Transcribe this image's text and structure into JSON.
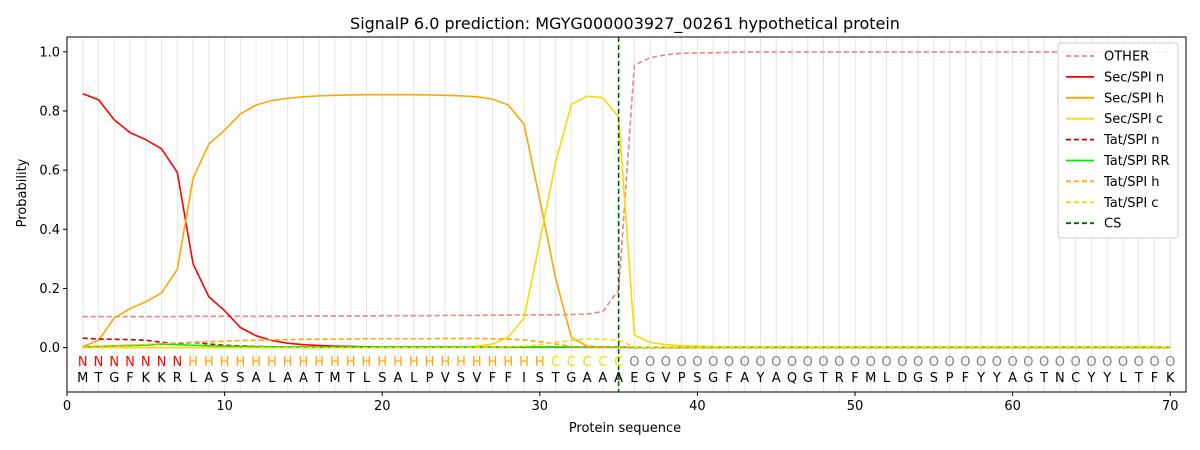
{
  "chart_data": {
    "type": "line",
    "title": "SignalP 6.0 prediction: MGYG000003927_00261 hypothetical protein",
    "xlabel": "Protein sequence",
    "ylabel": "Probability",
    "xlim": [
      0,
      71
    ],
    "ylim": [
      -0.15,
      1.05
    ],
    "xticks": [
      0,
      10,
      20,
      30,
      40,
      50,
      60,
      70
    ],
    "yticks": [
      0.0,
      0.2,
      0.4,
      0.6,
      0.8,
      1.0
    ],
    "legend_position": "top-right",
    "cleavage_site": 35,
    "sequence": [
      "M",
      "T",
      "G",
      "F",
      "K",
      "K",
      "R",
      "L",
      "A",
      "S",
      "S",
      "A",
      "L",
      "A",
      "A",
      "T",
      "M",
      "T",
      "L",
      "S",
      "A",
      "L",
      "P",
      "V",
      "S",
      "V",
      "F",
      "F",
      "I",
      "S",
      "T",
      "G",
      "A",
      "A",
      "A",
      "E",
      "G",
      "V",
      "P",
      "S",
      "G",
      "F",
      "A",
      "Y",
      "A",
      "Q",
      "G",
      "T",
      "R",
      "F",
      "M",
      "L",
      "D",
      "G",
      "S",
      "P",
      "F",
      "Y",
      "Y",
      "A",
      "G",
      "T",
      "N",
      "C",
      "Y",
      "Y",
      "L",
      "T",
      "F",
      "K"
    ],
    "region_labels": [
      "N",
      "N",
      "N",
      "N",
      "N",
      "N",
      "N",
      "H",
      "H",
      "H",
      "H",
      "H",
      "H",
      "H",
      "H",
      "H",
      "H",
      "H",
      "H",
      "H",
      "H",
      "H",
      "H",
      "H",
      "H",
      "H",
      "H",
      "H",
      "H",
      "H",
      "C",
      "C",
      "C",
      "C",
      "C",
      "O",
      "O",
      "O",
      "O",
      "O",
      "O",
      "O",
      "O",
      "O",
      "O",
      "O",
      "O",
      "O",
      "O",
      "O",
      "O",
      "O",
      "O",
      "O",
      "O",
      "O",
      "O",
      "O",
      "O",
      "O",
      "O",
      "O",
      "O",
      "O",
      "O",
      "O",
      "O",
      "O",
      "O",
      "O"
    ],
    "region_colors": {
      "N": "#ff0000",
      "H": "#ffa500",
      "C": "#ffd700",
      "O": "#808080"
    },
    "series": [
      {
        "name": "OTHER",
        "color": "#f08080",
        "dash": true,
        "values": [
          0.105,
          0.105,
          0.105,
          0.105,
          0.105,
          0.105,
          0.105,
          0.106,
          0.106,
          0.106,
          0.106,
          0.106,
          0.106,
          0.106,
          0.107,
          0.107,
          0.107,
          0.107,
          0.107,
          0.108,
          0.108,
          0.108,
          0.108,
          0.109,
          0.109,
          0.109,
          0.11,
          0.11,
          0.111,
          0.111,
          0.111,
          0.112,
          0.113,
          0.122,
          0.195,
          0.955,
          0.98,
          0.99,
          0.995,
          0.996,
          0.997,
          0.998,
          0.999,
          0.999,
          0.999,
          0.999,
          0.999,
          0.999,
          0.999,
          0.999,
          0.999,
          0.999,
          0.999,
          0.999,
          0.999,
          0.999,
          0.999,
          0.999,
          0.999,
          0.999,
          0.999,
          0.999,
          0.999,
          0.999,
          0.999,
          0.999,
          0.999,
          0.999,
          0.999,
          0.999
        ]
      },
      {
        "name": "Sec/SPI n",
        "color": "#ff0000",
        "dash": false,
        "values": [
          0.858,
          0.838,
          0.77,
          0.727,
          0.703,
          0.672,
          0.592,
          0.283,
          0.172,
          0.125,
          0.068,
          0.04,
          0.024,
          0.015,
          0.01,
          0.007,
          0.005,
          0.004,
          0.003,
          0.002,
          0.002,
          0.002,
          0.002,
          0.002,
          0.002,
          0.002,
          0.002,
          0.002,
          0.002,
          0.002,
          0.002,
          0.002,
          0.002,
          0.002,
          0.002,
          0.001,
          0.001,
          0.001,
          0.001,
          0.001,
          0.001,
          0.001,
          0.001,
          0.001,
          0.001,
          0.001,
          0.001,
          0.001,
          0.001,
          0.001,
          0.001,
          0.001,
          0.001,
          0.001,
          0.001,
          0.001,
          0.001,
          0.001,
          0.001,
          0.001,
          0.001,
          0.001,
          0.001,
          0.001,
          0.001,
          0.001,
          0.001,
          0.001,
          0.001,
          0.001
        ]
      },
      {
        "name": "Sec/SPI h",
        "color": "#ffa500",
        "dash": false,
        "values": [
          0.003,
          0.025,
          0.1,
          0.132,
          0.155,
          0.185,
          0.265,
          0.572,
          0.688,
          0.735,
          0.79,
          0.82,
          0.835,
          0.843,
          0.848,
          0.851,
          0.853,
          0.854,
          0.855,
          0.855,
          0.855,
          0.855,
          0.854,
          0.853,
          0.851,
          0.848,
          0.84,
          0.82,
          0.755,
          0.5,
          0.235,
          0.035,
          0.005,
          0.002,
          0.001,
          0.001,
          0.001,
          0.001,
          0.001,
          0.001,
          0.001,
          0.001,
          0.001,
          0.001,
          0.001,
          0.001,
          0.001,
          0.001,
          0.001,
          0.001,
          0.001,
          0.001,
          0.001,
          0.001,
          0.001,
          0.001,
          0.001,
          0.001,
          0.001,
          0.001,
          0.001,
          0.001,
          0.001,
          0.001,
          0.001,
          0.001,
          0.001,
          0.001,
          0.001,
          0.001
        ]
      },
      {
        "name": "Sec/SPI c",
        "color": "#ffd700",
        "dash": false,
        "values": [
          0.0,
          0.0,
          0.0,
          0.0,
          0.0,
          0.0,
          0.0,
          0.0,
          0.0,
          0.0,
          0.0,
          0.0,
          0.0,
          0.0,
          0.0,
          0.0,
          0.0,
          0.0,
          0.0,
          0.0,
          0.0,
          0.0,
          0.0,
          0.001,
          0.002,
          0.005,
          0.012,
          0.035,
          0.1,
          0.36,
          0.625,
          0.822,
          0.85,
          0.845,
          0.78,
          0.042,
          0.018,
          0.01,
          0.006,
          0.005,
          0.004,
          0.003,
          0.003,
          0.003,
          0.003,
          0.003,
          0.003,
          0.003,
          0.003,
          0.003,
          0.003,
          0.003,
          0.003,
          0.003,
          0.003,
          0.003,
          0.003,
          0.003,
          0.003,
          0.003,
          0.003,
          0.003,
          0.003,
          0.003,
          0.003,
          0.003,
          0.003,
          0.004,
          0.004,
          0.002
        ]
      },
      {
        "name": "Tat/SPI n",
        "color": "#cc0000",
        "dash": true,
        "values": [
          0.032,
          0.029,
          0.028,
          0.027,
          0.025,
          0.018,
          0.013,
          0.018,
          0.012,
          0.008,
          0.006,
          0.004,
          0.003,
          0.002,
          0.002,
          0.001,
          0.001,
          0.001,
          0.001,
          0.001,
          0.001,
          0.001,
          0.001,
          0.001,
          0.001,
          0.001,
          0.001,
          0.001,
          0.001,
          0.001,
          0.001,
          0.001,
          0.001,
          0.001,
          0.001,
          0.0,
          0.0,
          0.0,
          0.0,
          0.0,
          0.0,
          0.0,
          0.0,
          0.0,
          0.0,
          0.0,
          0.0,
          0.0,
          0.0,
          0.0,
          0.0,
          0.0,
          0.0,
          0.0,
          0.0,
          0.0,
          0.0,
          0.0,
          0.0,
          0.0,
          0.0,
          0.0,
          0.0,
          0.0,
          0.0,
          0.0,
          0.0,
          0.0,
          0.0,
          0.0
        ]
      },
      {
        "name": "Tat/SPI RR",
        "color": "#00ee00",
        "dash": false,
        "values": [
          0.003,
          0.004,
          0.006,
          0.007,
          0.008,
          0.012,
          0.01,
          0.008,
          0.006,
          0.005,
          0.004,
          0.003,
          0.003,
          0.002,
          0.002,
          0.002,
          0.002,
          0.002,
          0.002,
          0.002,
          0.002,
          0.002,
          0.002,
          0.002,
          0.002,
          0.002,
          0.002,
          0.002,
          0.002,
          0.002,
          0.002,
          0.002,
          0.001,
          0.001,
          0.001,
          0.001,
          0.001,
          0.001,
          0.001,
          0.001,
          0.001,
          0.001,
          0.001,
          0.001,
          0.001,
          0.001,
          0.001,
          0.001,
          0.001,
          0.001,
          0.001,
          0.001,
          0.001,
          0.001,
          0.001,
          0.001,
          0.001,
          0.001,
          0.001,
          0.001,
          0.001,
          0.001,
          0.001,
          0.001,
          0.001,
          0.001,
          0.001,
          0.001,
          0.001,
          0.001
        ]
      },
      {
        "name": "Tat/SPI h",
        "color": "#ffa500",
        "dash": true,
        "values": [
          0.002,
          0.004,
          0.006,
          0.008,
          0.01,
          0.013,
          0.016,
          0.018,
          0.02,
          0.022,
          0.024,
          0.025,
          0.026,
          0.027,
          0.028,
          0.028,
          0.029,
          0.029,
          0.03,
          0.03,
          0.03,
          0.03,
          0.03,
          0.031,
          0.031,
          0.031,
          0.03,
          0.029,
          0.026,
          0.02,
          0.012,
          0.004,
          0.002,
          0.001,
          0.001,
          0.001,
          0.001,
          0.001,
          0.001,
          0.001,
          0.001,
          0.001,
          0.001,
          0.001,
          0.001,
          0.001,
          0.001,
          0.001,
          0.001,
          0.001,
          0.001,
          0.001,
          0.001,
          0.001,
          0.001,
          0.001,
          0.001,
          0.001,
          0.001,
          0.001,
          0.001,
          0.001,
          0.001,
          0.001,
          0.001,
          0.001,
          0.001,
          0.001,
          0.001,
          0.001
        ]
      },
      {
        "name": "Tat/SPI c",
        "color": "#ffd700",
        "dash": true,
        "values": [
          0.0,
          0.0,
          0.0,
          0.0,
          0.0,
          0.0,
          0.0,
          0.0,
          0.0,
          0.0,
          0.0,
          0.0,
          0.0,
          0.0,
          0.0,
          0.0,
          0.0,
          0.0,
          0.0,
          0.0,
          0.0,
          0.0,
          0.0,
          0.0,
          0.0,
          0.001,
          0.002,
          0.003,
          0.005,
          0.01,
          0.018,
          0.024,
          0.03,
          0.028,
          0.025,
          0.002,
          0.001,
          0.001,
          0.001,
          0.001,
          0.001,
          0.001,
          0.001,
          0.001,
          0.001,
          0.001,
          0.001,
          0.001,
          0.001,
          0.001,
          0.001,
          0.001,
          0.001,
          0.001,
          0.001,
          0.001,
          0.001,
          0.001,
          0.001,
          0.001,
          0.001,
          0.001,
          0.001,
          0.001,
          0.001,
          0.001,
          0.001,
          0.001,
          0.001,
          0.001
        ]
      }
    ],
    "cs_legend": {
      "name": "CS",
      "color": "#006400"
    }
  }
}
